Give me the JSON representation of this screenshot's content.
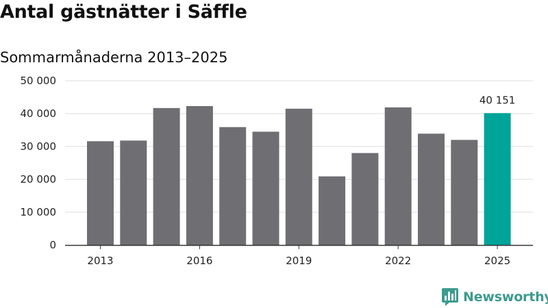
{
  "chart_data": {
    "type": "bar",
    "title": "Antal gästnätter i Säffle",
    "subtitle": "Sommarmånaderna 2013–2025",
    "xlabel": "",
    "ylabel": "",
    "categories": [
      "2013",
      "2014",
      "2015",
      "2016",
      "2017",
      "2018",
      "2019",
      "2020",
      "2021",
      "2022",
      "2023",
      "2024",
      "2025"
    ],
    "x_tick_labels": [
      "2013",
      "2016",
      "2019",
      "2022",
      "2025"
    ],
    "values": [
      31600,
      31800,
      41700,
      42300,
      35900,
      34500,
      41500,
      20900,
      28000,
      41900,
      33900,
      32000,
      40151
    ],
    "ylim": [
      0,
      50000
    ],
    "y_ticks": [
      0,
      10000,
      20000,
      30000,
      40000,
      50000
    ],
    "y_tick_labels": [
      "0",
      "10 000",
      "20 000",
      "30 000",
      "40 000",
      "50 000"
    ],
    "highlight_index": 12,
    "data_labels": [
      {
        "index": 12,
        "text": "40 151"
      }
    ],
    "grid": true,
    "legend": "none",
    "colors": {
      "bar": "#6f6e73",
      "highlight": "#00a499",
      "grid": "#dddddd",
      "axis": "#333333"
    }
  },
  "branding": {
    "text": "Newsworthy",
    "icon": "bar-chart-speech-icon",
    "color": "#3d9a8e"
  }
}
